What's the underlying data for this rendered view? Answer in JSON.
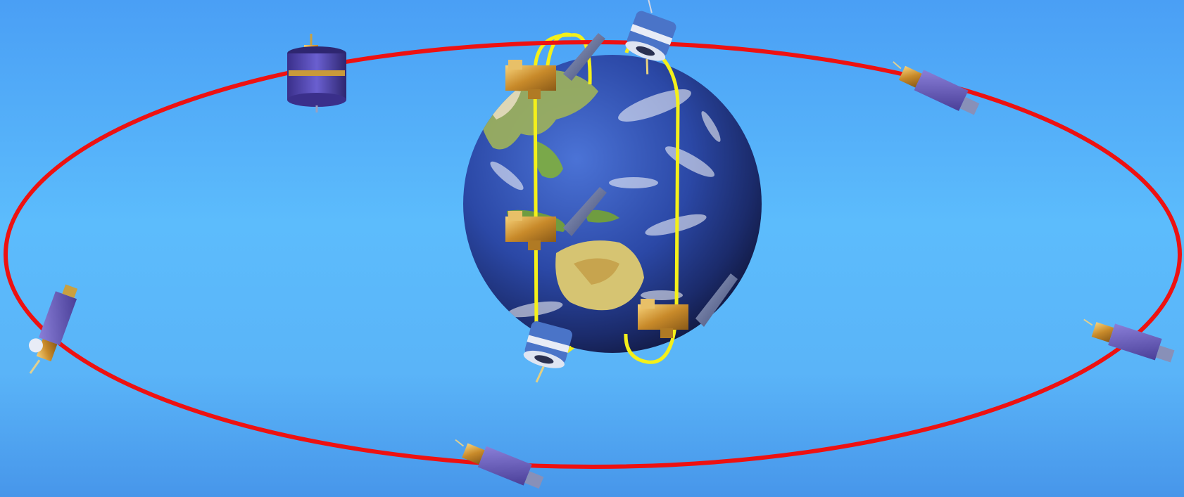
{
  "scene": {
    "background": "#55b0fa",
    "orbit_geo_color": "#ee1111",
    "orbit_polar_color": "#f4f01a",
    "earth_ocean": "#2a4aa8",
    "earth_land": "#c9b65a",
    "satellite_body": "#d7a53c",
    "solar_panel": "#6a5fc0",
    "spin_satellite": "#5248b8"
  },
  "objects": {
    "earth": "earth-globe",
    "geo_orbit": "geostationary-orbit",
    "polar_orbits": [
      "polar-orbit-left",
      "polar-orbit-right"
    ],
    "geo_satellites": [
      "spin-stabilized-satellite",
      "three-axis-satellite-top-right",
      "three-axis-satellite-right",
      "three-axis-satellite-bottom",
      "three-axis-satellite-left"
    ],
    "polar_satellites": [
      "polar-satellite-top-left",
      "polar-satellite-mid-left",
      "polar-satellite-bottom-right",
      "drum-satellite-top",
      "drum-satellite-bottom"
    ]
  }
}
